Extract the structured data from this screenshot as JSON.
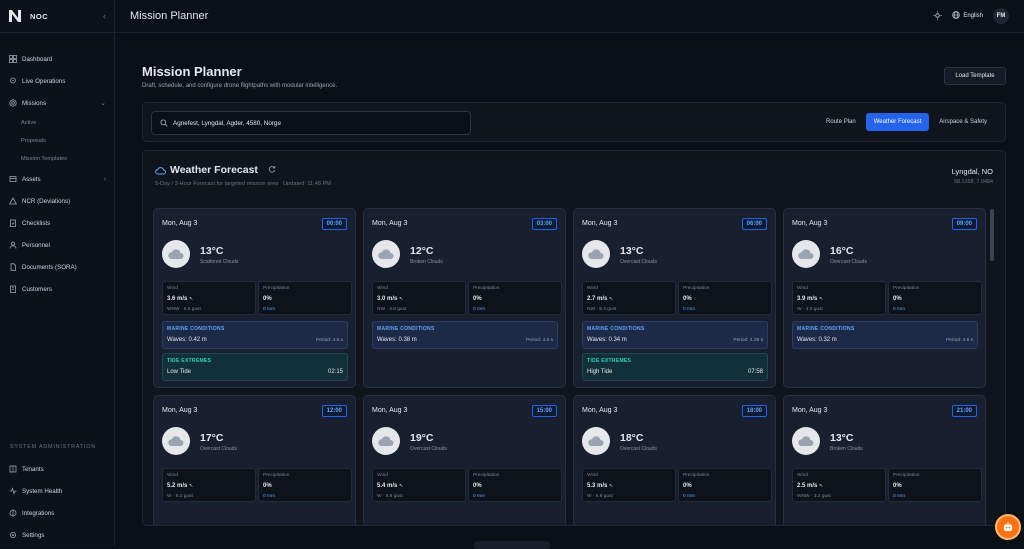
{
  "app": {
    "name": "NOC"
  },
  "sidebar": {
    "items": [
      {
        "label": "Dashboard",
        "icon": "grid-icon"
      },
      {
        "label": "Live Operations",
        "icon": "pin-icon"
      },
      {
        "label": "Missions",
        "icon": "target-icon"
      },
      {
        "label": "Assets",
        "icon": "box-icon"
      },
      {
        "label": "NCR (Deviations)",
        "icon": "alert-icon"
      },
      {
        "label": "Checklists",
        "icon": "clipboard-icon"
      },
      {
        "label": "Personnel",
        "icon": "user-icon"
      },
      {
        "label": "Documents (SORA)",
        "icon": "doc-icon"
      },
      {
        "label": "Customers",
        "icon": "building-icon"
      }
    ],
    "mission_sub": [
      "Active",
      "Proposals",
      "Mission Templates"
    ],
    "system_label": "SYSTEM ADMINISTRATION",
    "system_items": [
      {
        "label": "Tenants"
      },
      {
        "label": "System Health"
      },
      {
        "label": "Integrations"
      },
      {
        "label": "Settings"
      }
    ]
  },
  "topbar": {
    "title": "Mission Planner",
    "language": "English",
    "avatar": "FM"
  },
  "page": {
    "title": "Mission Planner",
    "subtitle": "Draft, schedule, and configure drone flightpaths with modular intelligence.",
    "load_template": "Load Template"
  },
  "search": {
    "value": "Agnefest, Lyngdal, Agder, 4580, Norge"
  },
  "tabs": [
    "Route Plan",
    "Weather Forecast",
    "Airspace & Safety"
  ],
  "weather": {
    "title": "Weather Forecast",
    "subtitle": "5-Day / 3-Hour Forecast for targeted mission area",
    "updated": "Updated: 11:48 PM",
    "location": "Lyngdal, NO",
    "coords": "58.1258, 7.0484",
    "labels": {
      "wind": "Wind",
      "precip": "Precipitation",
      "marine": "MARINE CONDITIONS",
      "tide": "TIDE EXTREMES"
    },
    "cards": [
      {
        "date": "Mon, Aug 3",
        "time": "00:00",
        "temp": "13°C",
        "desc": "Scattered Clouds",
        "wind": "3.6 m/s",
        "wind_sub": "WNW · 5.5 gust",
        "precip": "0%",
        "precip_sub": "0 mm",
        "waves": "Waves: 0.42 m",
        "period": "Period: 4.5 s",
        "tide": "Low Tide",
        "tide_time": "02:15"
      },
      {
        "date": "Mon, Aug 3",
        "time": "03:00",
        "temp": "12°C",
        "desc": "Broken Clouds",
        "wind": "3.0 m/s",
        "wind_sub": "NW · 4.8 gust",
        "precip": "0%",
        "precip_sub": "0 mm",
        "waves": "Waves: 0.38 m",
        "period": "Period: 4.5 s"
      },
      {
        "date": "Mon, Aug 3",
        "time": "06:00",
        "temp": "13°C",
        "desc": "Overcast Clouds",
        "wind": "2.7 m/s",
        "wind_sub": "NW · 5.4 gust",
        "precip": "0%",
        "precip_sub": "0 mm",
        "waves": "Waves: 0.34 m",
        "period": "Period: 4.35 s",
        "tide": "High Tide",
        "tide_time": "07:58"
      },
      {
        "date": "Mon, Aug 3",
        "time": "09:00",
        "temp": "16°C",
        "desc": "Overcast Clouds",
        "wind": "3.9 m/s",
        "wind_sub": "W · 4.5 gust",
        "precip": "0%",
        "precip_sub": "0 mm",
        "waves": "Waves: 0.32 m",
        "period": "Period: 4.5 s"
      },
      {
        "date": "Mon, Aug 3",
        "time": "12:00",
        "temp": "17°C",
        "desc": "Overcast Clouds",
        "wind": "5.2 m/s",
        "wind_sub": "W · 5.2 gust",
        "precip": "0%",
        "precip_sub": "0 mm"
      },
      {
        "date": "Mon, Aug 3",
        "time": "15:00",
        "temp": "19°C",
        "desc": "Overcast Clouds",
        "wind": "5.4 m/s",
        "wind_sub": "W · 5.6 gust",
        "precip": "0%",
        "precip_sub": "0 mm"
      },
      {
        "date": "Mon, Aug 3",
        "time": "18:00",
        "temp": "18°C",
        "desc": "Overcast Clouds",
        "wind": "5.3 m/s",
        "wind_sub": "W · 5.8 gust",
        "precip": "0%",
        "precip_sub": "0 mm"
      },
      {
        "date": "Mon, Aug 3",
        "time": "21:00",
        "temp": "13°C",
        "desc": "Broken Clouds",
        "wind": "2.5 m/s",
        "wind_sub": "WNW · 3.2 gust",
        "precip": "0%",
        "precip_sub": "0 mm"
      }
    ]
  },
  "colors": {
    "accent": "#2563eb",
    "bg": "#0b0f17",
    "marine": "#1c2a47",
    "tide": "#12303a",
    "fab": "#f97316"
  }
}
